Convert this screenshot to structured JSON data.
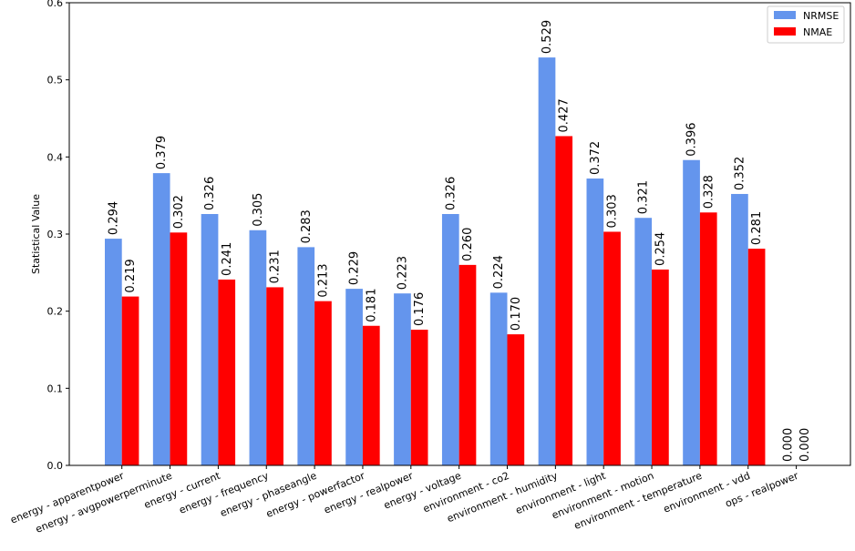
{
  "chart_data": {
    "type": "bar",
    "title": "",
    "xlabel": "",
    "ylabel": "Statistical Value",
    "ylim": [
      0,
      0.6
    ],
    "yticks": [
      "0.0",
      "0.1",
      "0.2",
      "0.3",
      "0.4",
      "0.5",
      "0.6"
    ],
    "grid": false,
    "legend_position": "top-right",
    "categories": [
      "energy - apparentpower",
      "energy - avgpowerperminute",
      "energy - current",
      "energy - frequency",
      "energy - phaseangle",
      "energy - powerfactor",
      "energy - realpower",
      "energy - voltage",
      "environment - co2",
      "environment - humidity",
      "environment - light",
      "environment - motion",
      "environment - temperature",
      "environment - vdd",
      "ops - realpower"
    ],
    "series": [
      {
        "name": "NRMSE",
        "color": "#6495ed",
        "values": [
          0.294,
          0.379,
          0.326,
          0.305,
          0.283,
          0.229,
          0.223,
          0.326,
          0.224,
          0.529,
          0.372,
          0.321,
          0.396,
          0.352,
          0.0
        ],
        "labels": [
          "0.294",
          "0.379",
          "0.326",
          "0.305",
          "0.283",
          "0.229",
          "0.223",
          "0.326",
          "0.224",
          "0.529",
          "0.372",
          "0.321",
          "0.396",
          "0.352",
          "0.000"
        ]
      },
      {
        "name": "NMAE",
        "color": "#ff0000",
        "values": [
          0.219,
          0.302,
          0.241,
          0.231,
          0.213,
          0.181,
          0.176,
          0.26,
          0.17,
          0.427,
          0.303,
          0.254,
          0.328,
          0.281,
          0.0
        ],
        "labels": [
          "0.219",
          "0.302",
          "0.241",
          "0.231",
          "0.213",
          "0.181",
          "0.176",
          "0.260",
          "0.170",
          "0.427",
          "0.303",
          "0.254",
          "0.328",
          "0.281",
          "0.000"
        ]
      }
    ]
  }
}
